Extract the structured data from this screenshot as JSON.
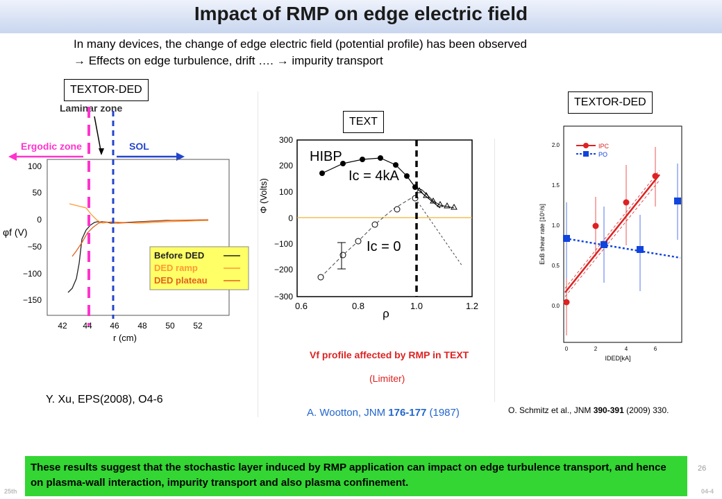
{
  "title": "Impact of RMP on edge electric field",
  "intro": {
    "line1": "In many devices, the change of edge electric field (potential profile) has been observed",
    "line2": "→ Effects on edge turbulence, drift ….  → impurity transport"
  },
  "labels": {
    "left": "TEXTOR-DED",
    "middle": "TEXT",
    "right": "TEXTOR-DED"
  },
  "left_panel": {
    "laminar_zone": "Laminar zone",
    "ergodic_zone": "Ergodic zone",
    "sol": "SOL",
    "ylabel": "φf (V)",
    "xlabel": "r (cm)",
    "yticks": [
      "100",
      "50",
      "0",
      "−50",
      "−100",
      "−150"
    ],
    "xticks": [
      "42",
      "44",
      "46",
      "48",
      "50",
      "52"
    ],
    "legend": [
      "Before DED",
      "DED ramp",
      "DED plateau"
    ],
    "colors": {
      "before": "#222222",
      "ramp": "#ff9933",
      "plateau": "#e06020",
      "ergodic": "#ff33cc",
      "sol": "#2244cc"
    },
    "citation": "Y. Xu, EPS(2008), O4-6"
  },
  "middle_panel": {
    "hibp": "HIBP",
    "ic4": "Iᴄ = 4kA",
    "ic0": "Iᴄ = 0",
    "ylabel": "Φ (Volts)",
    "xlabel": "ρ",
    "yticks": [
      "300",
      "200",
      "100",
      "0",
      "−100",
      "−200",
      "−300"
    ],
    "xticks": [
      "0.6",
      "0.8",
      "1.0",
      "1.2"
    ],
    "caption1": "Vf profile affected by RMP in TEXT",
    "caption2": "(Limiter)",
    "citation_prefix": "A. Wootton, JNM ",
    "citation_bold": "176-177",
    "citation_suffix": " (1987)"
  },
  "right_panel": {
    "legend": [
      "IPC",
      "PO"
    ],
    "ylabel": "ExB shear rate [10⁵/s]",
    "xlabel": "IDED[kA]",
    "yticks": [
      "2.0",
      "1.5",
      "1.0",
      "0.5",
      "0.0"
    ],
    "xticks": [
      "0",
      "2",
      "4",
      "6"
    ],
    "colors": {
      "ipc": "#dd2222",
      "po": "#1144dd"
    },
    "citation_prefix": "O. Schmitz et al., JNM ",
    "citation_bold": "390-391",
    "citation_suffix": " (2009) 330."
  },
  "conclusion": "These results suggest that the stochastic layer induced by RMP application can impact on edge turbulence transport, and hence on plasma-wall interaction, impurity transport and also plasma confinement.",
  "page_number": "26",
  "footer_left": "25th",
  "footer_right": "04-4"
}
